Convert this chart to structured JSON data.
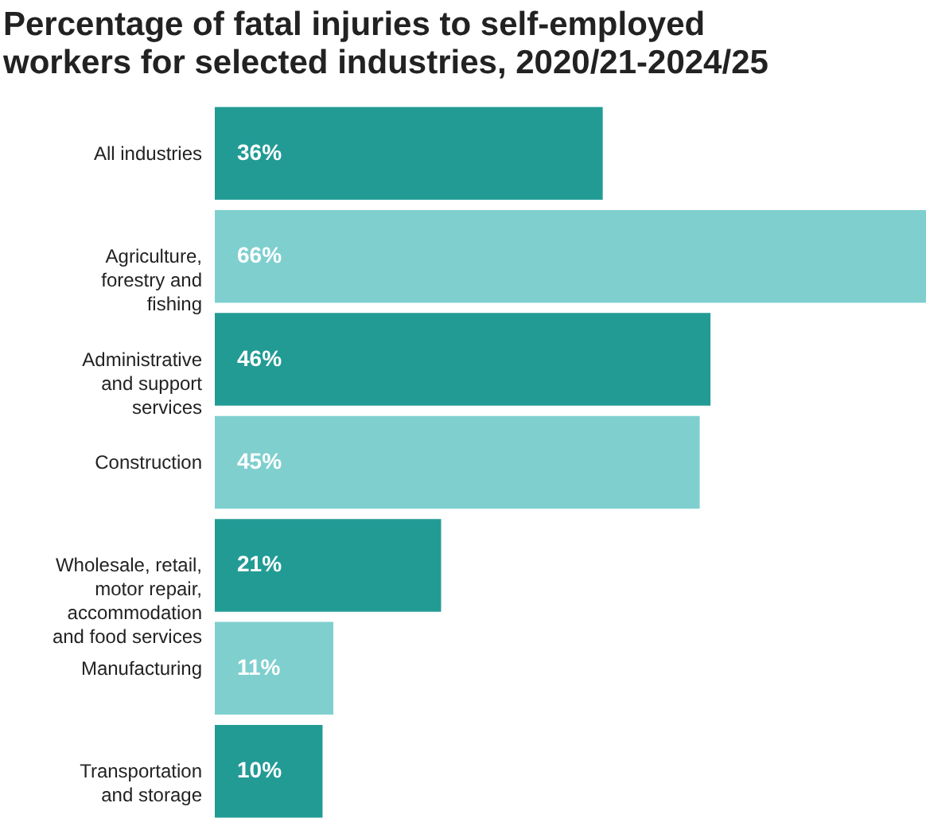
{
  "chart_data": {
    "type": "bar",
    "orientation": "horizontal",
    "title": "Percentage of fatal injuries to self-employed workers for selected industries, 2020/21-2024/25",
    "categories": [
      "All industries",
      "Agriculture, forestry and fishing",
      "Administrative and support services",
      "Construction",
      "Wholesale, retail, motor repair, accommodation and food services",
      "Manufacturing",
      "Transportation and storage"
    ],
    "values": [
      36,
      66,
      46,
      45,
      21,
      11,
      10
    ],
    "value_labels": [
      "36%",
      "66%",
      "46%",
      "45%",
      "21%",
      "11%",
      "10%"
    ],
    "colors": [
      "#229b95",
      "#7fcfcf",
      "#229b95",
      "#7fcfcf",
      "#229b95",
      "#7fcfcf",
      "#229b95"
    ]
  }
}
